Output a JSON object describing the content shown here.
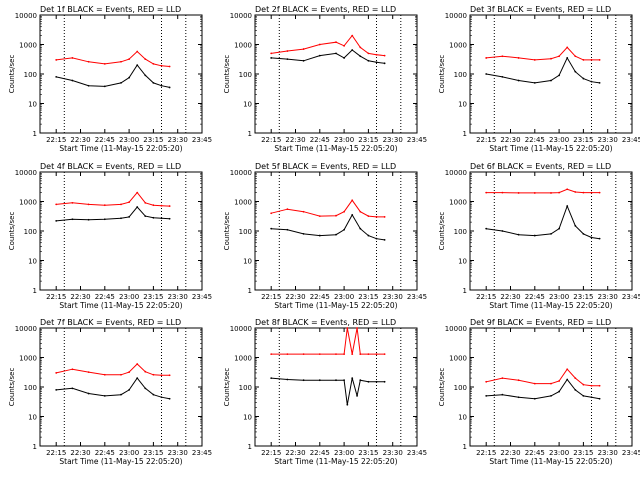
{
  "figure": {
    "xlabel": "Start Time (11-May-15 22:05:20)",
    "ylabel": "Counts/sec",
    "x_ticks": [
      "22:15",
      "22:30",
      "22:45",
      "23:00",
      "23:15",
      "23:30",
      "23:45"
    ],
    "y_ticks": [
      "1",
      "10",
      "100",
      "1000",
      "10000"
    ]
  },
  "colors": {
    "events": "#000000",
    "lld": "#ff0000",
    "axes": "#000000"
  },
  "chart_data": [
    {
      "type": "line",
      "title": "Det 1f BLACK = Events, RED = LLD",
      "xlabel": "Start Time (11-May-15 22:05:20)",
      "ylabel": "Counts/sec",
      "xlim": [
        "22:05",
        "23:45"
      ],
      "ylim": [
        1,
        10000
      ],
      "yscale": "log",
      "x": [
        "22:15",
        "22:25",
        "22:35",
        "22:45",
        "22:55",
        "23:00",
        "23:05",
        "23:10",
        "23:15",
        "23:20",
        "23:25"
      ],
      "series": [
        {
          "name": "Events",
          "color": "#000000",
          "values": [
            80,
            60,
            40,
            38,
            50,
            75,
            200,
            90,
            50,
            40,
            35
          ]
        },
        {
          "name": "LLD",
          "color": "#ff0000",
          "values": [
            300,
            350,
            260,
            220,
            260,
            320,
            580,
            320,
            220,
            190,
            180
          ]
        }
      ],
      "grid": false,
      "legend": "top-right"
    },
    {
      "type": "line",
      "title": "Det 2f BLACK = Events, RED = LLD",
      "xlabel": "Start Time (11-May-15 22:05:20)",
      "ylabel": "Counts/sec",
      "xlim": [
        "22:05",
        "23:45"
      ],
      "ylim": [
        1,
        10000
      ],
      "yscale": "log",
      "x": [
        "22:15",
        "22:25",
        "22:35",
        "22:45",
        "22:55",
        "23:00",
        "23:05",
        "23:10",
        "23:15",
        "23:20",
        "23:25"
      ],
      "series": [
        {
          "name": "Events",
          "color": "#000000",
          "values": [
            350,
            320,
            280,
            420,
            500,
            350,
            650,
            400,
            280,
            250,
            230
          ]
        },
        {
          "name": "LLD",
          "color": "#ff0000",
          "values": [
            500,
            600,
            700,
            1000,
            1200,
            900,
            2000,
            800,
            500,
            450,
            420
          ]
        }
      ],
      "grid": false,
      "legend": "top-right"
    },
    {
      "type": "line",
      "title": "Det 3f BLACK = Events, RED = LLD",
      "xlabel": "Start Time (11-May-15 22:05:20)",
      "ylabel": "Counts/sec",
      "xlim": [
        "22:05",
        "23:45"
      ],
      "ylim": [
        1,
        10000
      ],
      "yscale": "log",
      "x": [
        "22:15",
        "22:25",
        "22:35",
        "22:45",
        "22:55",
        "23:00",
        "23:05",
        "23:10",
        "23:15",
        "23:20",
        "23:25"
      ],
      "series": [
        {
          "name": "Events",
          "color": "#000000",
          "values": [
            100,
            80,
            60,
            50,
            60,
            90,
            350,
            120,
            70,
            55,
            50
          ]
        },
        {
          "name": "LLD",
          "color": "#ff0000",
          "values": [
            350,
            400,
            350,
            300,
            330,
            400,
            800,
            400,
            300,
            300,
            300
          ]
        }
      ],
      "grid": false,
      "legend": "top-right"
    },
    {
      "type": "line",
      "title": "Det 4f BLACK = Events, RED = LLD",
      "xlabel": "Start Time (11-May-15 22:05:20)",
      "ylabel": "Counts/sec",
      "xlim": [
        "22:05",
        "23:45"
      ],
      "ylim": [
        1,
        10000
      ],
      "yscale": "log",
      "x": [
        "22:15",
        "22:25",
        "22:35",
        "22:45",
        "22:55",
        "23:00",
        "23:05",
        "23:10",
        "23:15",
        "23:20",
        "23:25"
      ],
      "series": [
        {
          "name": "Events",
          "color": "#000000",
          "values": [
            220,
            250,
            240,
            250,
            270,
            300,
            650,
            320,
            280,
            270,
            260
          ]
        },
        {
          "name": "LLD",
          "color": "#ff0000",
          "values": [
            800,
            900,
            800,
            750,
            800,
            950,
            2000,
            900,
            750,
            720,
            700
          ]
        }
      ],
      "grid": false,
      "legend": "top-right"
    },
    {
      "type": "line",
      "title": "Det 5f BLACK = Events, RED = LLD",
      "xlabel": "Start Time (11-May-15 22:05:20)",
      "ylabel": "Counts/sec",
      "xlim": [
        "22:05",
        "23:45"
      ],
      "ylim": [
        1,
        10000
      ],
      "yscale": "log",
      "x": [
        "22:15",
        "22:25",
        "22:35",
        "22:45",
        "22:55",
        "23:00",
        "23:05",
        "23:10",
        "23:15",
        "23:20",
        "23:25"
      ],
      "series": [
        {
          "name": "Events",
          "color": "#000000",
          "values": [
            120,
            110,
            80,
            70,
            75,
            110,
            350,
            120,
            70,
            55,
            50
          ]
        },
        {
          "name": "LLD",
          "color": "#ff0000",
          "values": [
            400,
            550,
            450,
            320,
            330,
            450,
            1100,
            450,
            320,
            300,
            300
          ]
        }
      ],
      "grid": false,
      "legend": "top-right"
    },
    {
      "type": "line",
      "title": "Det 6f BLACK = Events, RED = LLD",
      "xlabel": "Start Time (11-May-15 22:05:20)",
      "ylabel": "Counts/sec",
      "xlim": [
        "22:05",
        "23:45"
      ],
      "ylim": [
        1,
        10000
      ],
      "yscale": "log",
      "x": [
        "22:15",
        "22:25",
        "22:35",
        "22:45",
        "22:55",
        "23:00",
        "23:05",
        "23:10",
        "23:15",
        "23:20",
        "23:25"
      ],
      "series": [
        {
          "name": "Events",
          "color": "#000000",
          "values": [
            120,
            100,
            75,
            70,
            80,
            120,
            700,
            150,
            80,
            60,
            55
          ]
        },
        {
          "name": "LLD",
          "color": "#ff0000",
          "values": [
            2000,
            2000,
            1950,
            1950,
            1950,
            2000,
            2600,
            2100,
            2000,
            2000,
            2000
          ]
        }
      ],
      "grid": false,
      "legend": "top-right"
    },
    {
      "type": "line",
      "title": "Det 7f BLACK = Events, RED = LLD",
      "xlabel": "Start Time (11-May-15 22:05:20)",
      "ylabel": "Counts/sec",
      "xlim": [
        "22:05",
        "23:45"
      ],
      "ylim": [
        1,
        10000
      ],
      "yscale": "log",
      "x": [
        "22:15",
        "22:25",
        "22:35",
        "22:45",
        "22:55",
        "23:00",
        "23:05",
        "23:10",
        "23:15",
        "23:20",
        "23:25"
      ],
      "series": [
        {
          "name": "Events",
          "color": "#000000",
          "values": [
            80,
            90,
            60,
            50,
            55,
            80,
            200,
            90,
            55,
            45,
            40
          ]
        },
        {
          "name": "LLD",
          "color": "#ff0000",
          "values": [
            300,
            400,
            320,
            260,
            260,
            320,
            600,
            330,
            260,
            250,
            250
          ]
        }
      ],
      "grid": false,
      "legend": "top-right"
    },
    {
      "type": "line",
      "title": "Det 8f BLACK = Events, RED = LLD",
      "xlabel": "Start Time (11-May-15 22:05:20)",
      "ylabel": "Counts/sec",
      "xlim": [
        "22:05",
        "23:45"
      ],
      "ylim": [
        1,
        10000
      ],
      "yscale": "log",
      "x": [
        "22:15",
        "22:25",
        "22:35",
        "22:45",
        "22:55",
        "23:00",
        "23:02",
        "23:05",
        "23:08",
        "23:10",
        "23:15",
        "23:20",
        "23:25"
      ],
      "series": [
        {
          "name": "Events",
          "color": "#000000",
          "values": [
            200,
            180,
            170,
            170,
            170,
            170,
            25,
            200,
            50,
            170,
            150,
            150,
            150
          ]
        },
        {
          "name": "LLD",
          "color": "#ff0000",
          "values": [
            1300,
            1300,
            1300,
            1300,
            1300,
            1300,
            10000,
            1300,
            10000,
            1300,
            1300,
            1300,
            1300
          ]
        }
      ],
      "grid": false,
      "legend": "top-right"
    },
    {
      "type": "line",
      "title": "Det 9f BLACK = Events, RED = LLD",
      "xlabel": "Start Time (11-May-15 22:05:20)",
      "ylabel": "Counts/sec",
      "xlim": [
        "22:05",
        "23:45"
      ],
      "ylim": [
        1,
        10000
      ],
      "yscale": "log",
      "x": [
        "22:15",
        "22:25",
        "22:35",
        "22:45",
        "22:55",
        "23:00",
        "23:05",
        "23:10",
        "23:15",
        "23:20",
        "23:25"
      ],
      "series": [
        {
          "name": "Events",
          "color": "#000000",
          "values": [
            50,
            55,
            45,
            40,
            50,
            70,
            180,
            80,
            50,
            45,
            40
          ]
        },
        {
          "name": "LLD",
          "color": "#ff0000",
          "values": [
            150,
            200,
            170,
            130,
            130,
            160,
            400,
            200,
            120,
            110,
            110
          ]
        }
      ],
      "grid": false,
      "legend": "top-right"
    }
  ]
}
